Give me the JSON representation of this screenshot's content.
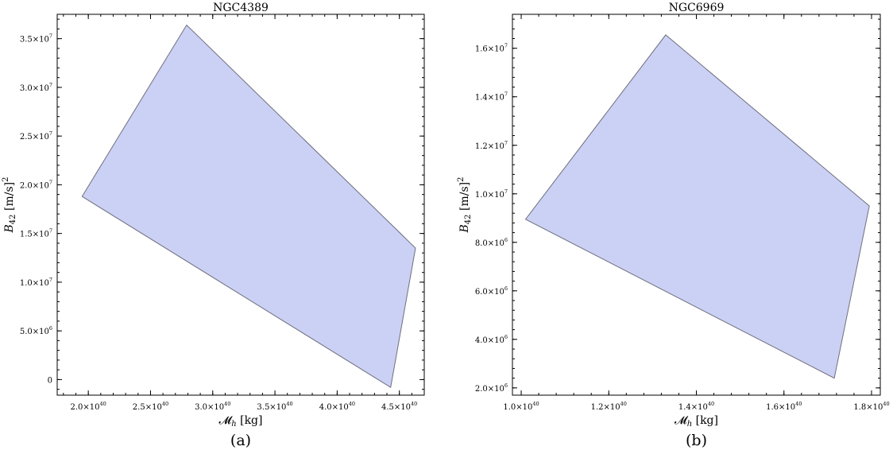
{
  "chart_data": [
    {
      "type": "area",
      "title": "NGC4389",
      "xlabel": "𝓜h [kg]",
      "ylabel": "B42 [m/s]2",
      "caption": "(a)",
      "xlim": [
        1.75e+40,
        4.7e+40
      ],
      "ylim": [
        -1600000.0,
        37500000.0
      ],
      "xticks": [
        {
          "value": 2e+40,
          "mant": "2.0",
          "exp": "40"
        },
        {
          "value": 2.5e+40,
          "mant": "2.5",
          "exp": "40"
        },
        {
          "value": 3e+40,
          "mant": "3.0",
          "exp": "40"
        },
        {
          "value": 3.5e+40,
          "mant": "3.5",
          "exp": "40"
        },
        {
          "value": 4e+40,
          "mant": "4.0",
          "exp": "40"
        },
        {
          "value": 4.5e+40,
          "mant": "4.5",
          "exp": "40"
        }
      ],
      "yticks": [
        {
          "value": 0,
          "mant": "0",
          "exp": ""
        },
        {
          "value": 5000000.0,
          "mant": "5.0",
          "exp": "6"
        },
        {
          "value": 10000000.0,
          "mant": "1.0",
          "exp": "7"
        },
        {
          "value": 15000000.0,
          "mant": "1.5",
          "exp": "7"
        },
        {
          "value": 20000000.0,
          "mant": "2.0",
          "exp": "7"
        },
        {
          "value": 25000000.0,
          "mant": "2.5",
          "exp": "7"
        },
        {
          "value": 30000000.0,
          "mant": "3.0",
          "exp": "7"
        },
        {
          "value": 35000000.0,
          "mant": "3.5",
          "exp": "7"
        }
      ],
      "polygon": [
        [
          1.95e+40,
          18800000.0
        ],
        [
          2.79e+40,
          36400000.0
        ],
        [
          4.63e+40,
          13500000.0
        ],
        [
          4.43e+40,
          -800000.0
        ]
      ]
    },
    {
      "type": "area",
      "title": "NGC6969",
      "xlabel": "𝓜h [kg]",
      "ylabel": "B42 [m/s]2",
      "caption": "(b)",
      "xlim": [
        9.8e+39,
        1.82e+40
      ],
      "ylim": [
        1700000.0,
        17400000.0
      ],
      "xticks": [
        {
          "value": 1e+40,
          "mant": "1.0",
          "exp": "40"
        },
        {
          "value": 1.2e+40,
          "mant": "1.2",
          "exp": "40"
        },
        {
          "value": 1.4e+40,
          "mant": "1.4",
          "exp": "40"
        },
        {
          "value": 1.6e+40,
          "mant": "1.6",
          "exp": "40"
        },
        {
          "value": 1.8e+40,
          "mant": "1.8",
          "exp": "40"
        }
      ],
      "yticks": [
        {
          "value": 2000000.0,
          "mant": "2.0",
          "exp": "6"
        },
        {
          "value": 4000000.0,
          "mant": "4.0",
          "exp": "6"
        },
        {
          "value": 6000000.0,
          "mant": "6.0",
          "exp": "6"
        },
        {
          "value": 8000000.0,
          "mant": "8.0",
          "exp": "6"
        },
        {
          "value": 10000000.0,
          "mant": "1.0",
          "exp": "7"
        },
        {
          "value": 12000000.0,
          "mant": "1.2",
          "exp": "7"
        },
        {
          "value": 14000000.0,
          "mant": "1.4",
          "exp": "7"
        },
        {
          "value": 16000000.0,
          "mant": "1.6",
          "exp": "7"
        }
      ],
      "polygon": [
        [
          1.01e+40,
          8950000.0
        ],
        [
          1.33e+40,
          16550000.0
        ],
        [
          1.795e+40,
          9500000.0
        ],
        [
          1.715e+40,
          2400000.0
        ]
      ]
    }
  ]
}
